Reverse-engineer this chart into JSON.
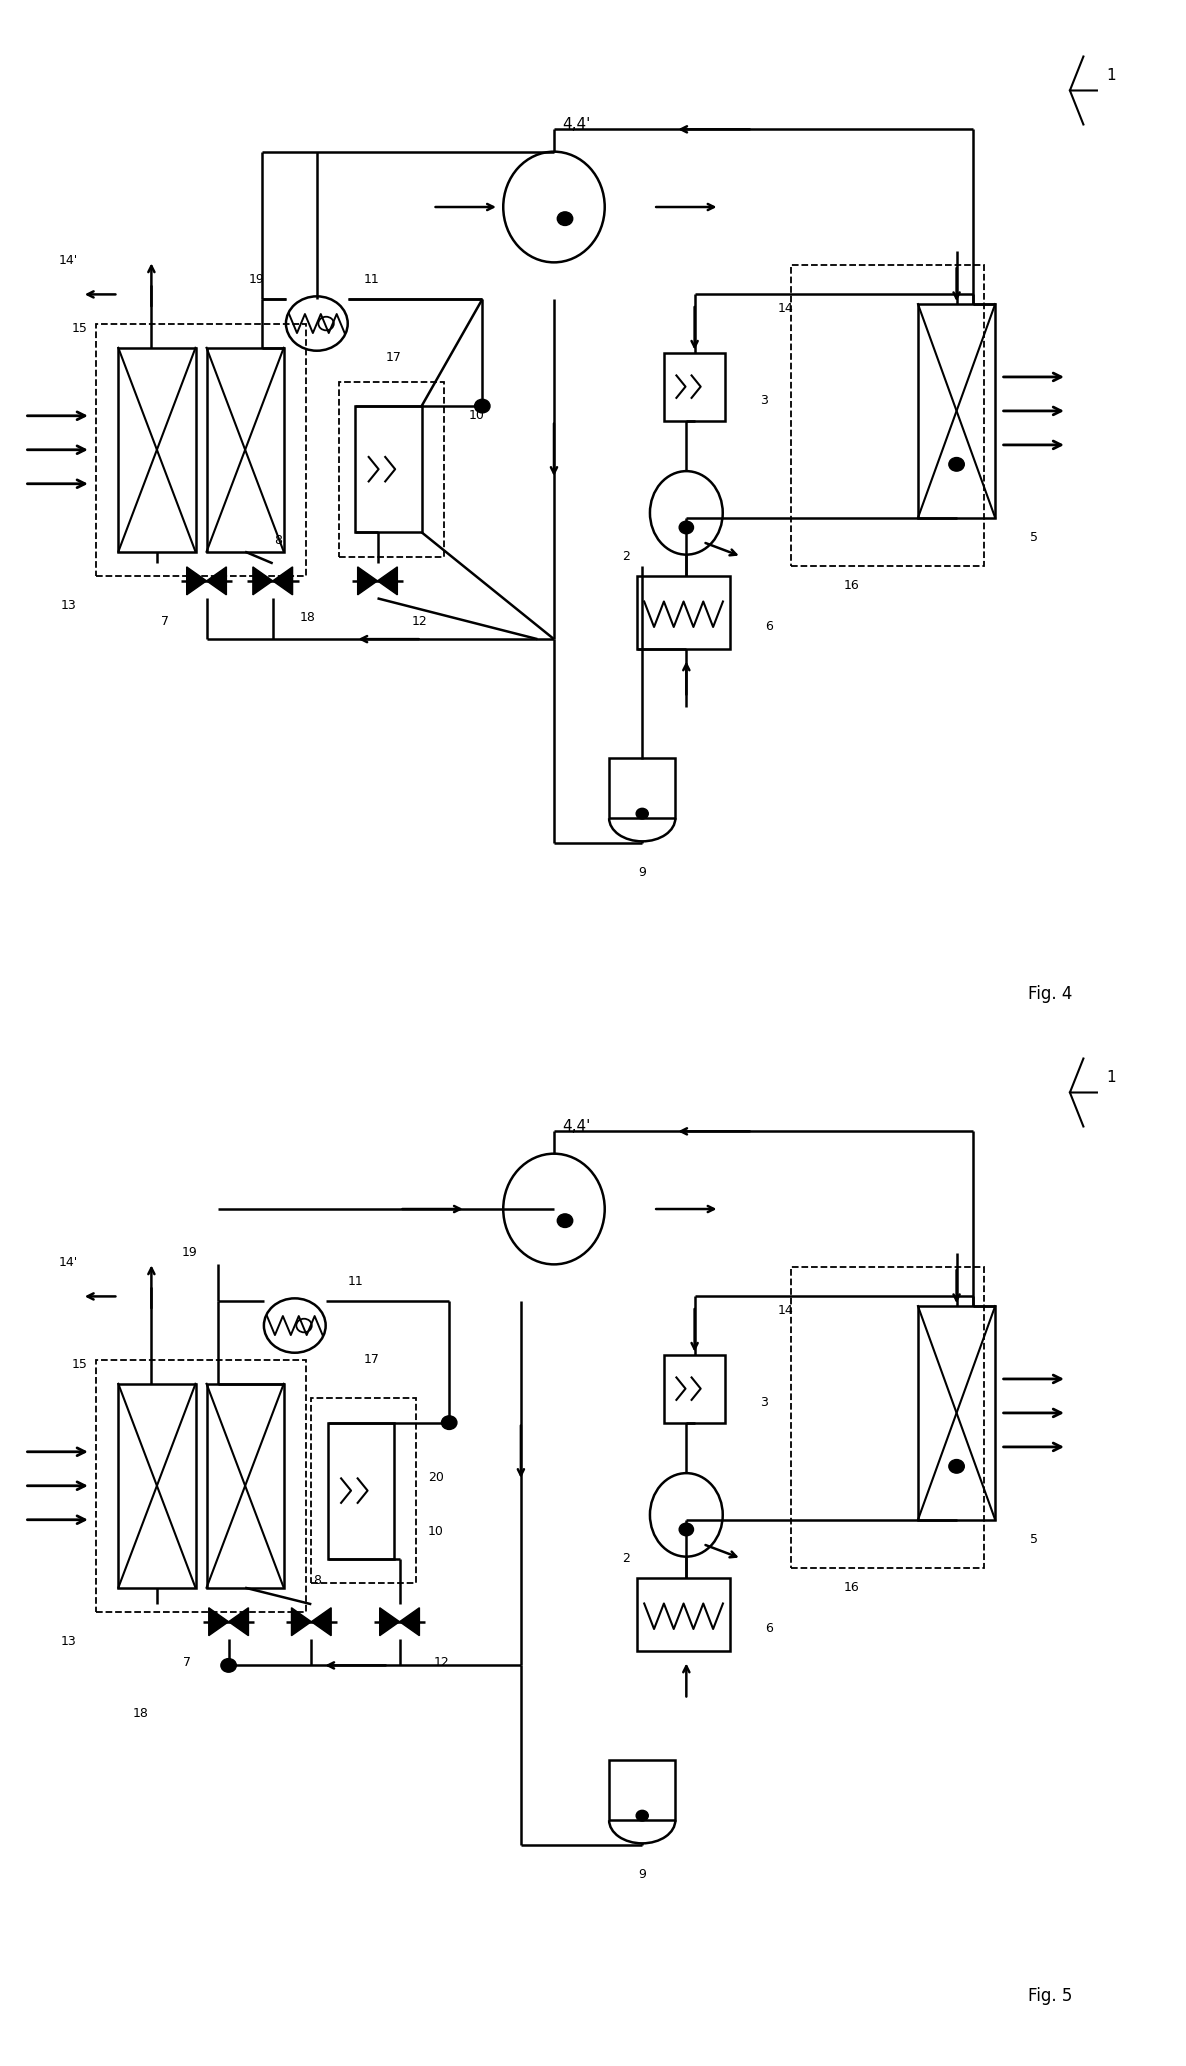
{
  "fig_width": 11.86,
  "fig_height": 20.66,
  "dpi": 100,
  "lw": 1.8,
  "fig4_label": "Fig. 4",
  "fig5_label": "Fig. 5",
  "fs": 9,
  "fs_large": 11
}
